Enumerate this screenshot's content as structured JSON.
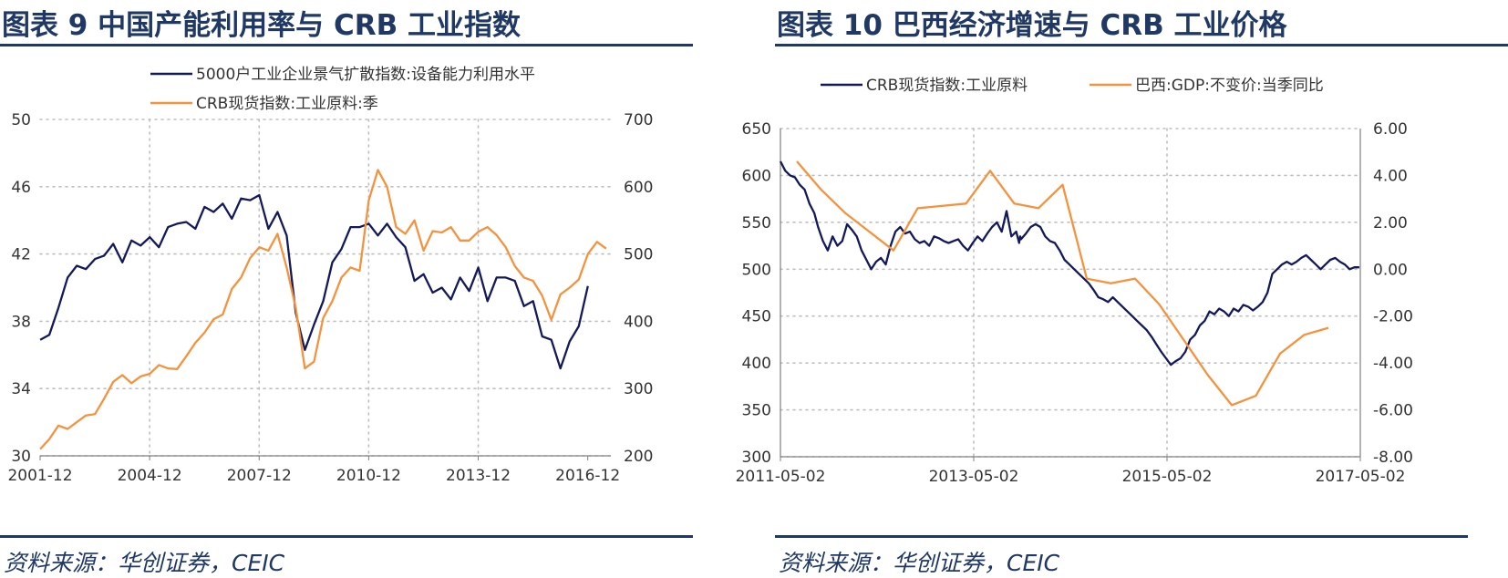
{
  "colors": {
    "navy": "#14195a",
    "orange": "#f5923e",
    "title": "#1f3864",
    "grid": "#bfbfbf"
  },
  "left": {
    "title": "图表 9 中国产能利用率与 CRB 工业指数",
    "source": "资料来源：华创证券，CEIC"
  },
  "right": {
    "title": "图表 10 巴西经济增速与 CRB 工业价格",
    "source": "资料来源：华创证券，CEIC"
  },
  "chart_data": [
    {
      "id": "left",
      "type": "line",
      "title": "中国产能利用率与 CRB 工业指数",
      "x_unit": "year",
      "x_ticks": [
        {
          "label": "2001-12",
          "x": 2001.917
        },
        {
          "label": "2004-12",
          "x": 2004.917
        },
        {
          "label": "2007-12",
          "x": 2007.917
        },
        {
          "label": "2010-12",
          "x": 2010.917
        },
        {
          "label": "2013-12",
          "x": 2013.917
        },
        {
          "label": "2016-12",
          "x": 2016.917
        }
      ],
      "xlim": [
        2001.917,
        2017.55
      ],
      "y_left": {
        "min": 30,
        "max": 50,
        "ticks": [
          30,
          34,
          38,
          42,
          46,
          50
        ]
      },
      "y_right": {
        "min": 200,
        "max": 700,
        "ticks": [
          200,
          300,
          400,
          500,
          600,
          700
        ]
      },
      "legend": "top",
      "series": [
        {
          "name": "5000户工业企业景气扩散指数:设备能力利用水平",
          "axis": "left",
          "color": "navy",
          "x": [
            2001.92,
            2002.17,
            2002.42,
            2002.67,
            2002.92,
            2003.17,
            2003.42,
            2003.67,
            2003.92,
            2004.17,
            2004.42,
            2004.67,
            2004.92,
            2005.17,
            2005.42,
            2005.67,
            2005.92,
            2006.17,
            2006.42,
            2006.67,
            2006.92,
            2007.17,
            2007.42,
            2007.67,
            2007.92,
            2008.17,
            2008.42,
            2008.67,
            2008.92,
            2009.17,
            2009.42,
            2009.67,
            2009.92,
            2010.17,
            2010.42,
            2010.67,
            2010.92,
            2011.17,
            2011.42,
            2011.67,
            2011.92,
            2012.17,
            2012.42,
            2012.67,
            2012.92,
            2013.17,
            2013.42,
            2013.67,
            2013.92,
            2014.17,
            2014.42,
            2014.67,
            2014.92,
            2015.17,
            2015.42,
            2015.67,
            2015.92,
            2016.17,
            2016.42,
            2016.67,
            2016.92
          ],
          "y": [
            36.9,
            37.2,
            38.8,
            40.6,
            41.3,
            41.1,
            41.7,
            41.9,
            42.6,
            41.5,
            42.8,
            42.5,
            43.0,
            42.4,
            43.6,
            43.8,
            43.9,
            43.5,
            44.8,
            44.5,
            45.0,
            44.1,
            45.3,
            45.2,
            45.5,
            43.5,
            44.5,
            43.1,
            38.5,
            36.3,
            37.8,
            39.2,
            41.5,
            42.3,
            43.6,
            43.6,
            43.8,
            43.1,
            43.8,
            43.0,
            42.4,
            40.4,
            40.8,
            39.7,
            40.0,
            39.3,
            40.6,
            39.8,
            41.2,
            39.2,
            40.6,
            40.6,
            40.4,
            38.9,
            39.2,
            37.1,
            36.9,
            35.2,
            36.8,
            37.7,
            40.1
          ]
        },
        {
          "name": "CRB现货指数:工业原料:季",
          "axis": "right",
          "color": "orange",
          "x": [
            2001.92,
            2002.17,
            2002.42,
            2002.67,
            2002.92,
            2003.17,
            2003.42,
            2003.67,
            2003.92,
            2004.17,
            2004.42,
            2004.67,
            2004.92,
            2005.17,
            2005.42,
            2005.67,
            2005.92,
            2006.17,
            2006.42,
            2006.67,
            2006.92,
            2007.17,
            2007.42,
            2007.67,
            2007.92,
            2008.17,
            2008.42,
            2008.67,
            2008.92,
            2009.17,
            2009.42,
            2009.67,
            2009.92,
            2010.17,
            2010.42,
            2010.67,
            2010.92,
            2011.17,
            2011.42,
            2011.67,
            2011.92,
            2012.17,
            2012.42,
            2012.67,
            2012.92,
            2013.17,
            2013.42,
            2013.67,
            2013.92,
            2014.17,
            2014.42,
            2014.67,
            2014.92,
            2015.17,
            2015.42,
            2015.67,
            2015.92,
            2016.17,
            2016.42,
            2016.67,
            2016.92,
            2017.17,
            2017.42
          ],
          "y": [
            210,
            225,
            245,
            240,
            250,
            260,
            262,
            285,
            310,
            320,
            308,
            318,
            322,
            335,
            330,
            329,
            348,
            368,
            383,
            403,
            410,
            448,
            465,
            494,
            510,
            505,
            530,
            480,
            420,
            330,
            340,
            405,
            430,
            465,
            480,
            475,
            580,
            625,
            600,
            540,
            530,
            550,
            505,
            534,
            532,
            540,
            520,
            520,
            533,
            540,
            528,
            510,
            482,
            465,
            460,
            438,
            402,
            440,
            450,
            462,
            500,
            518,
            508
          ]
        }
      ]
    },
    {
      "id": "right",
      "type": "line",
      "title": "巴西经济增速与 CRB 工业价格",
      "x_unit": "year",
      "x_ticks": [
        {
          "label": "2011-05-02",
          "x": 2011.33
        },
        {
          "label": "2013-05-02",
          "x": 2013.33
        },
        {
          "label": "2015-05-02",
          "x": 2015.33
        },
        {
          "label": "2017-05-02",
          "x": 2017.33
        }
      ],
      "xlim": [
        2011.33,
        2017.33
      ],
      "y_left": {
        "min": 300,
        "max": 650,
        "ticks": [
          300,
          350,
          400,
          450,
          500,
          550,
          600,
          650
        ]
      },
      "y_right": {
        "min": -8,
        "max": 6,
        "ticks": [
          "-8.00",
          "-6.00",
          "-4.00",
          "-2.00",
          "0.00",
          "2.00",
          "4.00",
          "6.00"
        ]
      },
      "legend": "top",
      "series": [
        {
          "name": "CRB现货指数:工业原料",
          "axis": "left",
          "color": "navy",
          "x": [
            2011.33,
            2011.38,
            2011.43,
            2011.48,
            2011.53,
            2011.58,
            2011.63,
            2011.68,
            2011.72,
            2011.77,
            2011.82,
            2011.87,
            2011.92,
            2011.97,
            2012.02,
            2012.07,
            2012.12,
            2012.17,
            2012.22,
            2012.27,
            2012.32,
            2012.37,
            2012.42,
            2012.47,
            2012.52,
            2012.57,
            2012.62,
            2012.67,
            2012.72,
            2012.77,
            2012.82,
            2012.87,
            2012.92,
            2012.97,
            2013.02,
            2013.07,
            2013.12,
            2013.17,
            2013.22,
            2013.27,
            2013.32,
            2013.37,
            2013.42,
            2013.47,
            2013.52,
            2013.57,
            2013.62,
            2013.67,
            2013.72,
            2013.77,
            2013.8,
            2013.81,
            2013.82,
            2013.87,
            2013.92,
            2013.97,
            2014.02,
            2014.07,
            2014.12,
            2014.17,
            2014.22,
            2014.27,
            2014.32,
            2014.37,
            2014.42,
            2014.47,
            2014.52,
            2014.57,
            2014.62,
            2014.67,
            2014.72,
            2014.77,
            2014.82,
            2014.87,
            2014.92,
            2014.97,
            2015.02,
            2015.07,
            2015.12,
            2015.17,
            2015.22,
            2015.27,
            2015.32,
            2015.37,
            2015.42,
            2015.47,
            2015.52,
            2015.57,
            2015.62,
            2015.67,
            2015.72,
            2015.77,
            2015.82,
            2015.87,
            2015.92,
            2015.97,
            2016.02,
            2016.07,
            2016.12,
            2016.17,
            2016.22,
            2016.27,
            2016.32,
            2016.37,
            2016.42,
            2016.47,
            2016.52,
            2016.57,
            2016.62,
            2016.67,
            2016.72,
            2016.77,
            2016.82,
            2016.87,
            2016.92,
            2016.97,
            2017.02,
            2017.07,
            2017.12,
            2017.17,
            2017.22,
            2017.27,
            2017.32
          ],
          "y": [
            615,
            605,
            600,
            598,
            590,
            585,
            570,
            560,
            545,
            530,
            520,
            535,
            525,
            530,
            548,
            542,
            535,
            520,
            510,
            500,
            508,
            512,
            505,
            525,
            540,
            545,
            538,
            540,
            532,
            528,
            530,
            525,
            535,
            533,
            530,
            528,
            530,
            532,
            525,
            520,
            528,
            535,
            530,
            538,
            545,
            550,
            540,
            562,
            535,
            540,
            528,
            535,
            532,
            538,
            545,
            548,
            545,
            535,
            530,
            528,
            520,
            510,
            505,
            500,
            495,
            490,
            485,
            478,
            470,
            468,
            465,
            470,
            465,
            460,
            455,
            450,
            445,
            440,
            435,
            428,
            420,
            412,
            405,
            398,
            402,
            405,
            412,
            425,
            430,
            440,
            445,
            455,
            452,
            458,
            455,
            450,
            458,
            455,
            462,
            460,
            456,
            460,
            465,
            475,
            495,
            500,
            505,
            508,
            505,
            508,
            512,
            515,
            510,
            505,
            500,
            505,
            510,
            512,
            508,
            505,
            500,
            502,
            502
          ]
        },
        {
          "name": "巴西:GDP:不变价:当季同比",
          "axis": "right",
          "color": "orange",
          "x": [
            2011.5,
            2011.75,
            2012.0,
            2012.25,
            2012.5,
            2012.75,
            2013.0,
            2013.25,
            2013.5,
            2013.75,
            2014.0,
            2014.25,
            2014.5,
            2014.75,
            2015.0,
            2015.25,
            2015.5,
            2015.75,
            2016.0,
            2016.25,
            2016.5,
            2016.75,
            2017.0
          ],
          "y": [
            4.6,
            3.4,
            2.4,
            1.6,
            0.8,
            2.6,
            2.7,
            2.8,
            4.2,
            2.8,
            2.6,
            3.6,
            -0.4,
            -0.6,
            -0.4,
            -1.5,
            -3.0,
            -4.5,
            -5.8,
            -5.4,
            -3.6,
            -2.8,
            -2.5
          ]
        }
      ]
    }
  ]
}
